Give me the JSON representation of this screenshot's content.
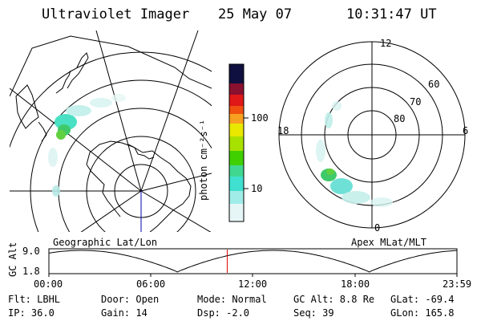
{
  "header": {
    "instrument": "Ultraviolet Imager",
    "date": "25 May 07",
    "time": "10:31:47 UT"
  },
  "colorbar": {
    "unit_label": "photon cm⁻²s⁻¹",
    "ticks": [
      "100",
      "10"
    ]
  },
  "left_panel": {
    "caption": "Geographic Lat/Lon"
  },
  "right_panel": {
    "caption": "Apex MLat/MLT",
    "mlt_labels": [
      "12",
      "18",
      "6",
      "0"
    ],
    "lat_labels": [
      "60",
      "70",
      "80"
    ]
  },
  "timeline": {
    "ylabel": "GC Alt",
    "y_ticks": [
      "9.0",
      "1.8"
    ],
    "x_ticks": [
      "00:00",
      "06:00",
      "12:00",
      "18:00",
      "23:59"
    ],
    "current_time_fraction": 0.437
  },
  "info": {
    "flt": "Flt: LBHL",
    "ip": "IP: 36.0",
    "door": "Door: Open",
    "gain": "Gain: 14",
    "mode": "Mode: Normal",
    "dsp": "Dsp:   -2.0",
    "gcalt": "GC Alt: 8.8 Re",
    "seq": "Seq: 39",
    "glat": "GLat: -69.4",
    "glon": "GLon: 165.8"
  }
}
